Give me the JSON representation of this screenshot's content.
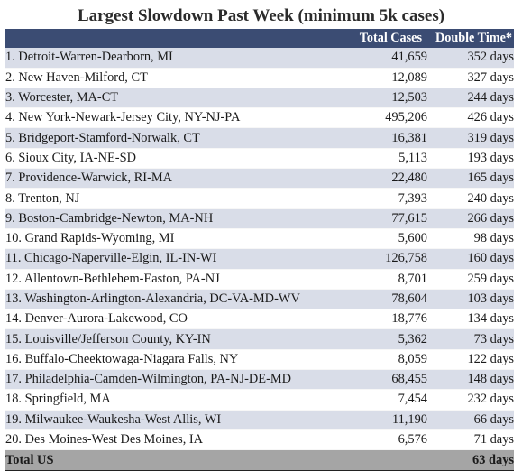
{
  "title": "Largest Slowdown Past Week (minimum 5k cases)",
  "columns": {
    "metro": "",
    "cases": "Total Cases",
    "doubling": "Double Time*"
  },
  "rows": [
    {
      "metro": "1. Detroit-Warren-Dearborn, MI",
      "cases": "41,659",
      "doubling": "352 days"
    },
    {
      "metro": "2. New Haven-Milford, CT",
      "cases": "12,089",
      "doubling": "327 days"
    },
    {
      "metro": "3. Worcester, MA-CT",
      "cases": "12,503",
      "doubling": "244 days"
    },
    {
      "metro": "4. New York-Newark-Jersey City, NY-NJ-PA",
      "cases": "495,206",
      "doubling": "426 days"
    },
    {
      "metro": "5. Bridgeport-Stamford-Norwalk, CT",
      "cases": "16,381",
      "doubling": "319 days"
    },
    {
      "metro": "6. Sioux City, IA-NE-SD",
      "cases": "5,113",
      "doubling": "193 days"
    },
    {
      "metro": "7. Providence-Warwick, RI-MA",
      "cases": "22,480",
      "doubling": "165 days"
    },
    {
      "metro": "8. Trenton, NJ",
      "cases": "7,393",
      "doubling": "240 days"
    },
    {
      "metro": "9. Boston-Cambridge-Newton, MA-NH",
      "cases": "77,615",
      "doubling": "266 days"
    },
    {
      "metro": "10. Grand Rapids-Wyoming, MI",
      "cases": "5,600",
      "doubling": "98 days"
    },
    {
      "metro": "11. Chicago-Naperville-Elgin, IL-IN-WI",
      "cases": "126,758",
      "doubling": "160 days"
    },
    {
      "metro": "12. Allentown-Bethlehem-Easton, PA-NJ",
      "cases": "8,701",
      "doubling": "259 days"
    },
    {
      "metro": "13. Washington-Arlington-Alexandria, DC-VA-MD-WV",
      "cases": "78,604",
      "doubling": "103 days"
    },
    {
      "metro": "14. Denver-Aurora-Lakewood, CO",
      "cases": "18,776",
      "doubling": "134 days"
    },
    {
      "metro": "15. Louisville/Jefferson County, KY-IN",
      "cases": "5,362",
      "doubling": "73 days"
    },
    {
      "metro": "16. Buffalo-Cheektowaga-Niagara Falls, NY",
      "cases": "8,059",
      "doubling": "122 days"
    },
    {
      "metro": "17. Philadelphia-Camden-Wilmington, PA-NJ-DE-MD",
      "cases": "68,455",
      "doubling": "148 days"
    },
    {
      "metro": "18. Springfield, MA",
      "cases": "7,454",
      "doubling": "232 days"
    },
    {
      "metro": "19. Milwaukee-Waukesha-West Allis, WI",
      "cases": "11,190",
      "doubling": "66 days"
    },
    {
      "metro": "20. Des Moines-West Des Moines, IA",
      "cases": "6,576",
      "doubling": "71 days"
    }
  ],
  "total": {
    "label": "Total US",
    "cases": "",
    "doubling": "63 days"
  },
  "colors": {
    "header_bg": "#3b4c73",
    "band_bg": "#d9dde8",
    "total_bg": "#a5a5a5"
  }
}
